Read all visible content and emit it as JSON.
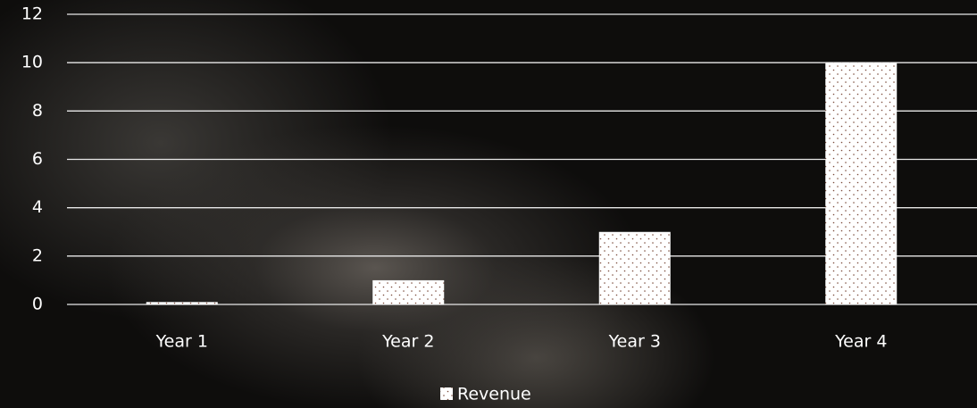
{
  "chart_data": {
    "type": "bar",
    "categories": [
      "Year 1",
      "Year 2",
      "Year 3",
      "Year 4"
    ],
    "series": [
      {
        "name": "Revenue",
        "color": "#ffffff",
        "values": [
          0.1,
          1,
          3,
          10
        ]
      }
    ],
    "ylim": [
      0,
      12
    ],
    "yticks": [
      0,
      2,
      4,
      6,
      8,
      10,
      12
    ],
    "grid": true,
    "legend": "bottom"
  }
}
